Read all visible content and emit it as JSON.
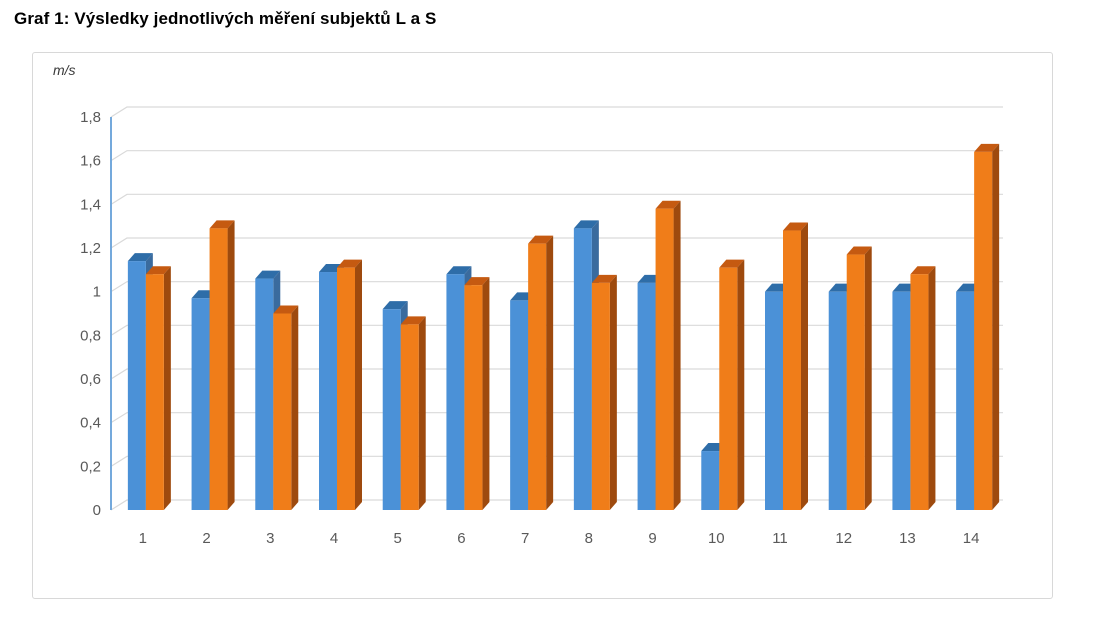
{
  "chart_data": {
    "type": "bar",
    "style": "3d-clustered-column",
    "title": "Graf 1: Výsledky jednotlivých měření subjektů L a S",
    "ylabel": "m/s",
    "xlabel": "",
    "legend": "none",
    "grid": true,
    "categories": [
      "1",
      "2",
      "3",
      "4",
      "5",
      "6",
      "7",
      "8",
      "9",
      "10",
      "11",
      "12",
      "13",
      "14"
    ],
    "series": [
      {
        "name": "L",
        "color": "#4b91d7",
        "color_top": "#2e6da8",
        "color_side": "#3a6b9e",
        "values": [
          1.14,
          0.97,
          1.06,
          1.09,
          0.92,
          1.08,
          0.96,
          1.29,
          1.04,
          0.27,
          1.0,
          1.0,
          1.0,
          1.0
        ]
      },
      {
        "name": "S",
        "color": "#f07d19",
        "color_top": "#c55a11",
        "color_side": "#9e4a0e",
        "values": [
          1.08,
          1.29,
          0.9,
          1.11,
          0.85,
          1.03,
          1.22,
          1.04,
          1.38,
          1.11,
          1.28,
          1.17,
          1.08,
          1.64
        ]
      }
    ],
    "y_axis": {
      "min": 0,
      "max": 1.8,
      "step": 0.2,
      "tick_labels": [
        "0",
        "0,2",
        "0,4",
        "0,6",
        "0,8",
        "1",
        "1,2",
        "1,4",
        "1,6",
        "1,8"
      ]
    },
    "colors": {
      "gridline": "#d9d9d9",
      "axis_line": "#74a9dc",
      "tick_text": "#595959",
      "frame_border": "#d8d8d8",
      "title_text": "#000000",
      "unit_text": "#3a3a3a"
    }
  }
}
